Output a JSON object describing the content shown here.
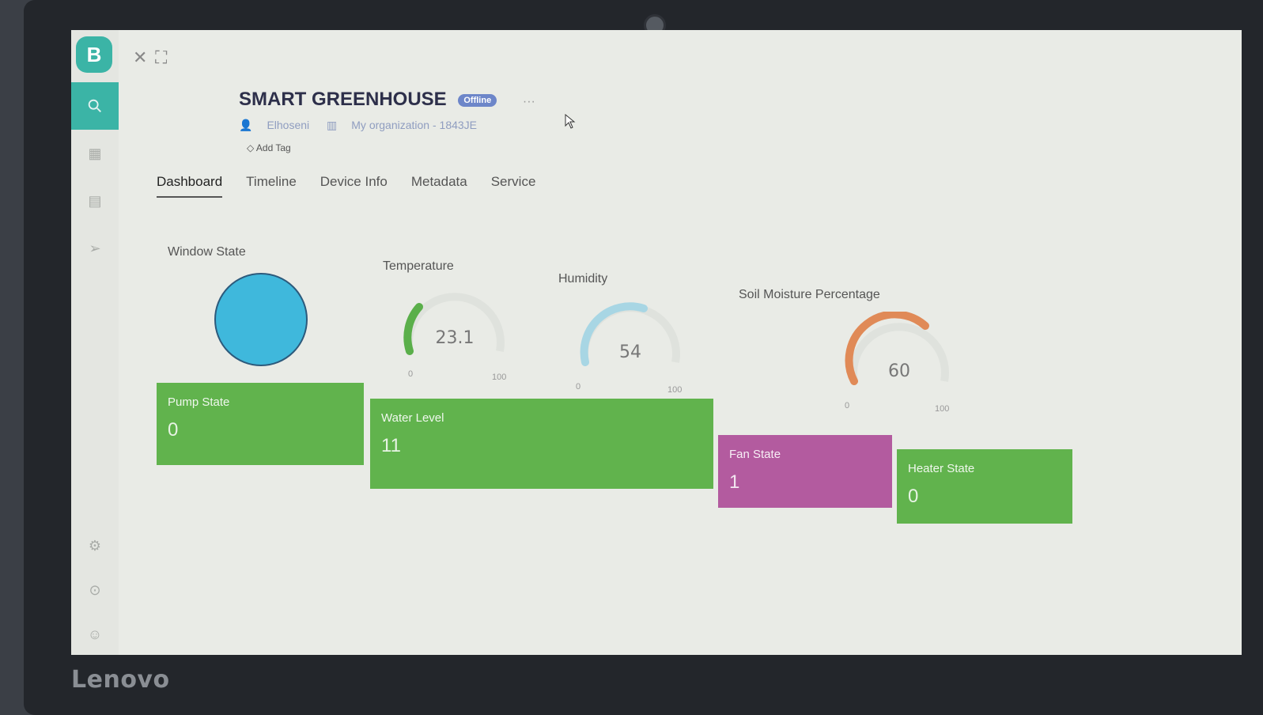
{
  "app": {
    "logo_letter": "B",
    "device_title": "SMART GREENHOUSE",
    "status_badge": "Offline",
    "owner": "Elhoseni",
    "organization": "My organization - 1843JE",
    "add_tag": "Add Tag",
    "more": "···"
  },
  "tabs": [
    {
      "label": "Dashboard",
      "active": true
    },
    {
      "label": "Timeline"
    },
    {
      "label": "Device Info"
    },
    {
      "label": "Metadata"
    },
    {
      "label": "Service"
    }
  ],
  "widgets": {
    "window_state": {
      "label": "Window State",
      "color": "#3fb8dc"
    },
    "temperature": {
      "label": "Temperature",
      "value": "23.1",
      "min": "0",
      "max": "100",
      "color": "#5aaf4a"
    },
    "humidity": {
      "label": "Humidity",
      "value": "54",
      "min": "0",
      "max": "100",
      "color": "#a8d6e4"
    },
    "soil": {
      "label": "Soil Moisture Percentage",
      "value": "60",
      "min": "0",
      "max": "100",
      "color": "#e08a57"
    },
    "pump": {
      "label": "Pump State",
      "value": "0",
      "color": "#61b34d"
    },
    "water": {
      "label": "Water Level",
      "value": "11",
      "color": "#61b34d"
    },
    "fan": {
      "label": "Fan State",
      "value": "1",
      "color": "#b35b9f"
    },
    "heater": {
      "label": "Heater State",
      "value": "0",
      "color": "#61b34d"
    }
  },
  "laptop": {
    "brand": "Lenovo"
  }
}
